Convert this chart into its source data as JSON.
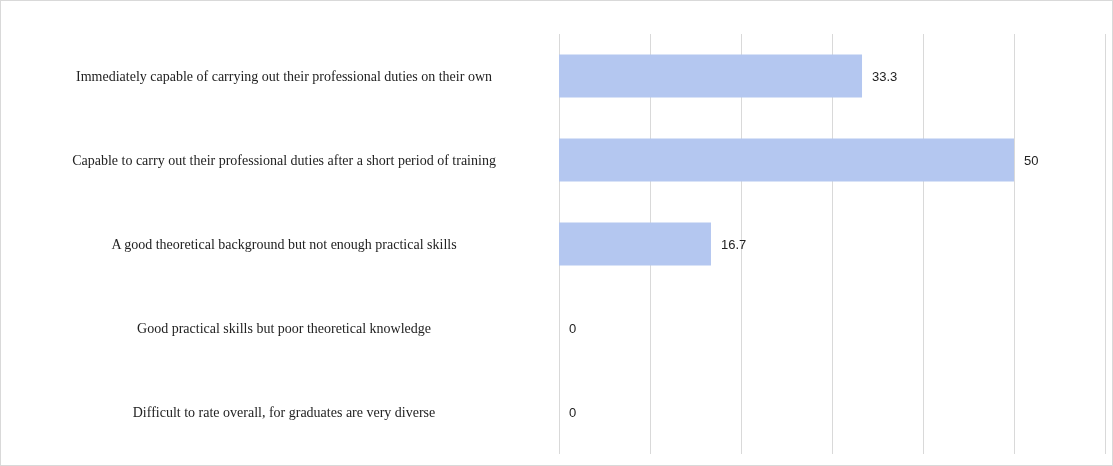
{
  "chart_data": {
    "type": "bar",
    "orientation": "horizontal",
    "categories": [
      "Immediately capable of carrying out their professional duties on their own",
      "Capable to carry out their professional duties after a short period of training",
      "A good theoretical background but not enough practical skills",
      "Good practical skills but poor theoretical knowledge",
      "Difficult to rate overall, for graduates are very diverse"
    ],
    "values": [
      33.3,
      50,
      16.7,
      0,
      0
    ],
    "color": "#b4c7f0",
    "xlim": [
      0,
      60
    ],
    "xticks": [
      {
        "value": 0,
        "label": null
      },
      {
        "value": 10,
        "label": null
      },
      {
        "value": 20,
        "label": null
      },
      {
        "value": 30,
        "label": null
      },
      {
        "value": 40,
        "label": null
      },
      {
        "value": 50,
        "label": null
      },
      {
        "value": 60,
        "label": null
      }
    ],
    "grid": "x",
    "data_labels": true,
    "tick_labels": "y"
  }
}
